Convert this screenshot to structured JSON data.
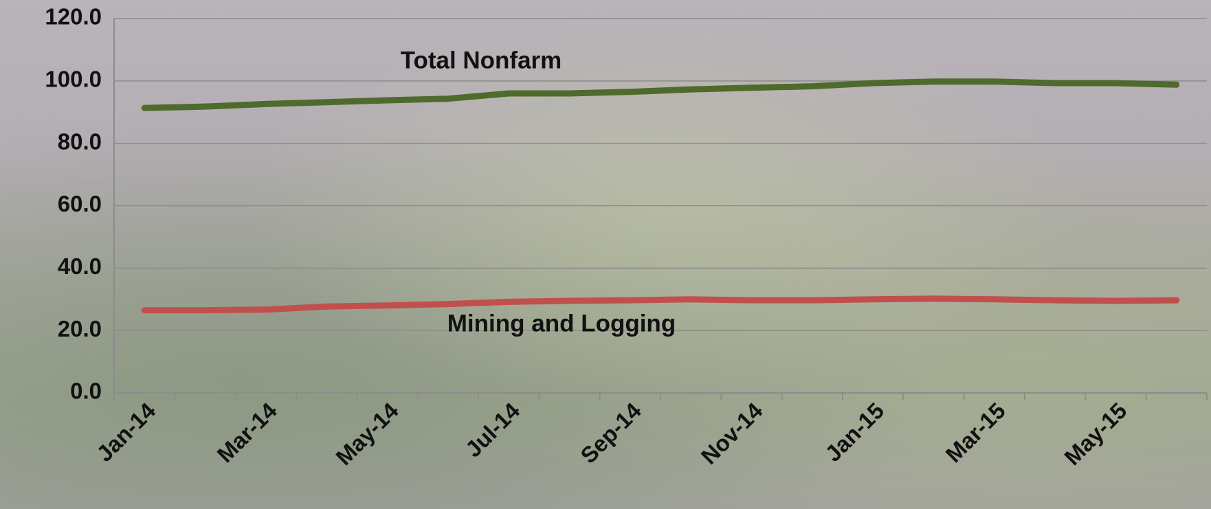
{
  "chart_data": {
    "type": "line",
    "categories": [
      "Jan-14",
      null,
      "Mar-14",
      null,
      "May-14",
      null,
      "Jul-14",
      null,
      "Sep-14",
      null,
      "Nov-14",
      null,
      "Jan-15",
      null,
      "Mar-15",
      null,
      "May-15",
      null
    ],
    "series": [
      {
        "name": "Total Nonfarm",
        "color": "#4e6a2c",
        "values": [
          91.3,
          91.8,
          92.6,
          93.2,
          93.8,
          94.3,
          96.0,
          96.0,
          96.5,
          97.3,
          97.8,
          98.3,
          99.3,
          99.8,
          99.8,
          99.3,
          99.3,
          98.8
        ]
      },
      {
        "name": "Mining and Logging",
        "color": "#c0504d",
        "values": [
          26.5,
          26.5,
          26.7,
          27.7,
          28.0,
          28.5,
          29.2,
          29.5,
          29.7,
          30.0,
          29.7,
          29.7,
          30.0,
          30.2,
          30.0,
          29.7,
          29.5,
          29.7
        ]
      }
    ],
    "ylim": [
      0,
      120
    ],
    "yticks": [
      {
        "value": 0,
        "label": "0.0"
      },
      {
        "value": 20,
        "label": "20.0"
      },
      {
        "value": 40,
        "label": "40.0"
      },
      {
        "value": 60,
        "label": "60.0"
      },
      {
        "value": 80,
        "label": "80.0"
      },
      {
        "value": 100,
        "label": "100.0"
      },
      {
        "value": 120,
        "label": "120.0"
      }
    ],
    "grid": true
  }
}
